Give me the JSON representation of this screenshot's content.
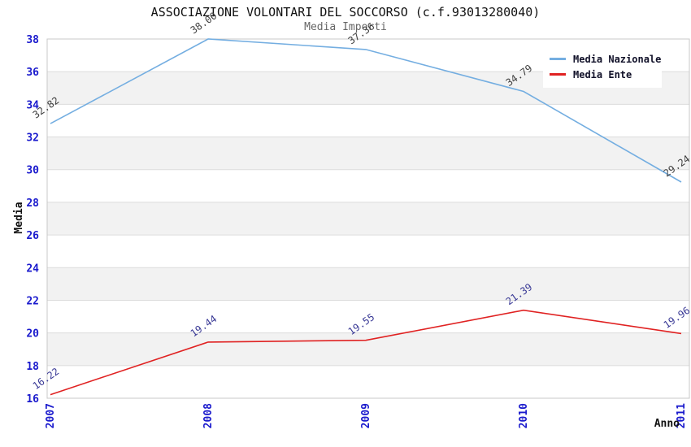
{
  "chart_data": {
    "type": "line",
    "title": "ASSOCIAZIONE VOLONTARI DEL SOCCORSO (c.f.93013280040)",
    "subtitle": "Media Importi",
    "categories": [
      "2007",
      "2008",
      "2009",
      "2010",
      "2011"
    ],
    "series": [
      {
        "name": "Media Nazionale",
        "color": "#74AEE1",
        "label_color": "#404040",
        "values": [
          32.82,
          38.0,
          37.36,
          34.79,
          29.24
        ]
      },
      {
        "name": "Media Ente",
        "color": "#E02222",
        "label_color": "#3A3A96",
        "values": [
          16.22,
          19.44,
          19.55,
          21.39,
          19.96
        ]
      }
    ],
    "xlabel": "Anno",
    "ylabel": "Media",
    "ylim": [
      16,
      38
    ],
    "ytick_step": 2,
    "yticks": [
      16,
      18,
      20,
      22,
      24,
      26,
      28,
      30,
      32,
      34,
      36,
      38
    ],
    "legend_position": "top-right",
    "grid": "horizontal-bands",
    "data_labels_visible": true,
    "colors": {
      "tick_text": "#1A1ACD",
      "gridline": "#DCDCDC",
      "plot_border": "#C8C8C8",
      "band_gray": "#F2F2F2",
      "band_white": "#FFFFFF",
      "axis_title_text": "#111111",
      "title_text": "#111111",
      "subtitle_text": "#666666"
    }
  }
}
